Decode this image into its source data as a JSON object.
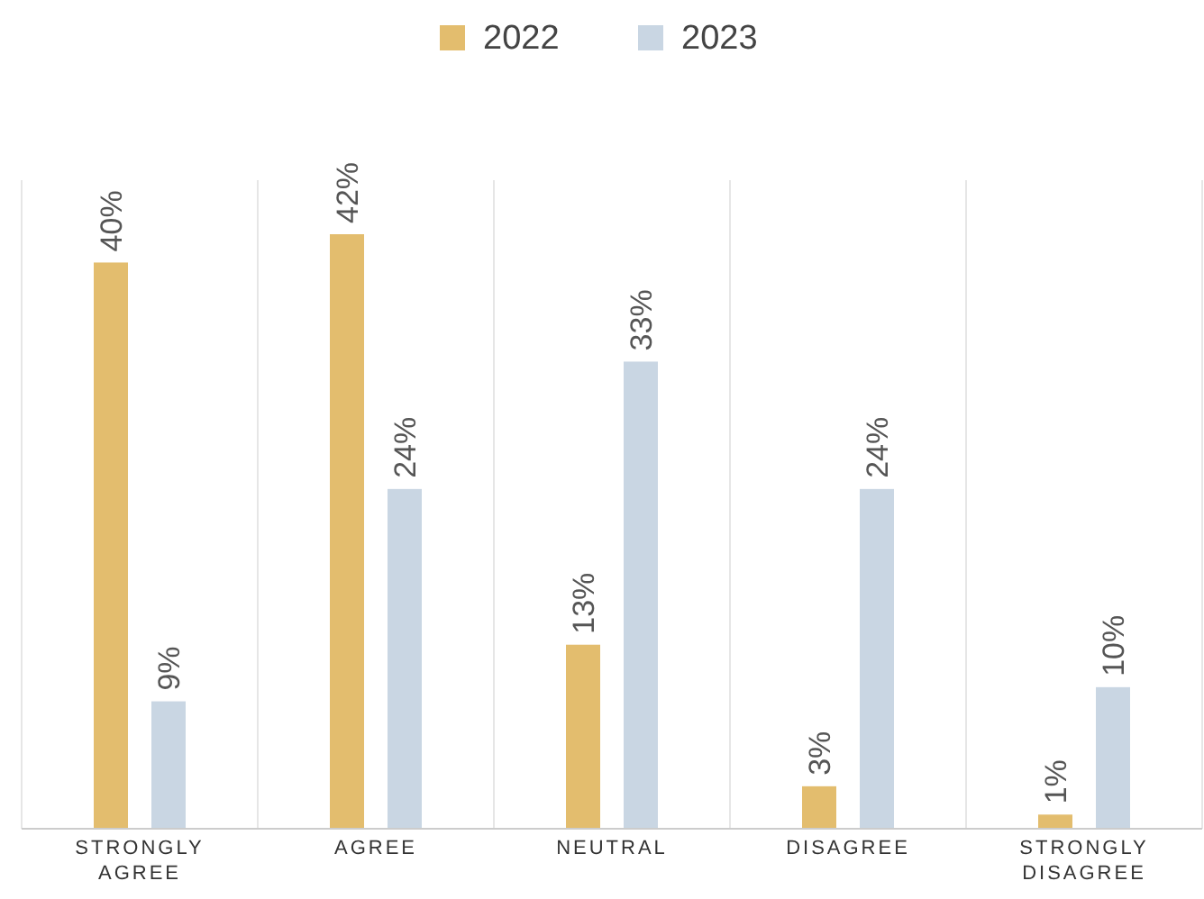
{
  "chart_data": {
    "type": "bar",
    "categories": [
      "STRONGLY AGREE",
      "AGREE",
      "NEUTRAL",
      "DISAGREE",
      "STRONGLY DISAGREE"
    ],
    "series": [
      {
        "name": "2022",
        "color": "#e3bd6e",
        "values": [
          40,
          42,
          13,
          3,
          1
        ],
        "value_labels": [
          "40%",
          "42%",
          "13%",
          "3%",
          "1%"
        ]
      },
      {
        "name": "2023",
        "color": "#c9d6e3",
        "values": [
          9,
          24,
          33,
          24,
          10
        ],
        "value_labels": [
          "9%",
          "24%",
          "33%",
          "24%",
          "10%"
        ]
      }
    ],
    "tick_labels": "x",
    "grid": "x",
    "legend": "top"
  }
}
